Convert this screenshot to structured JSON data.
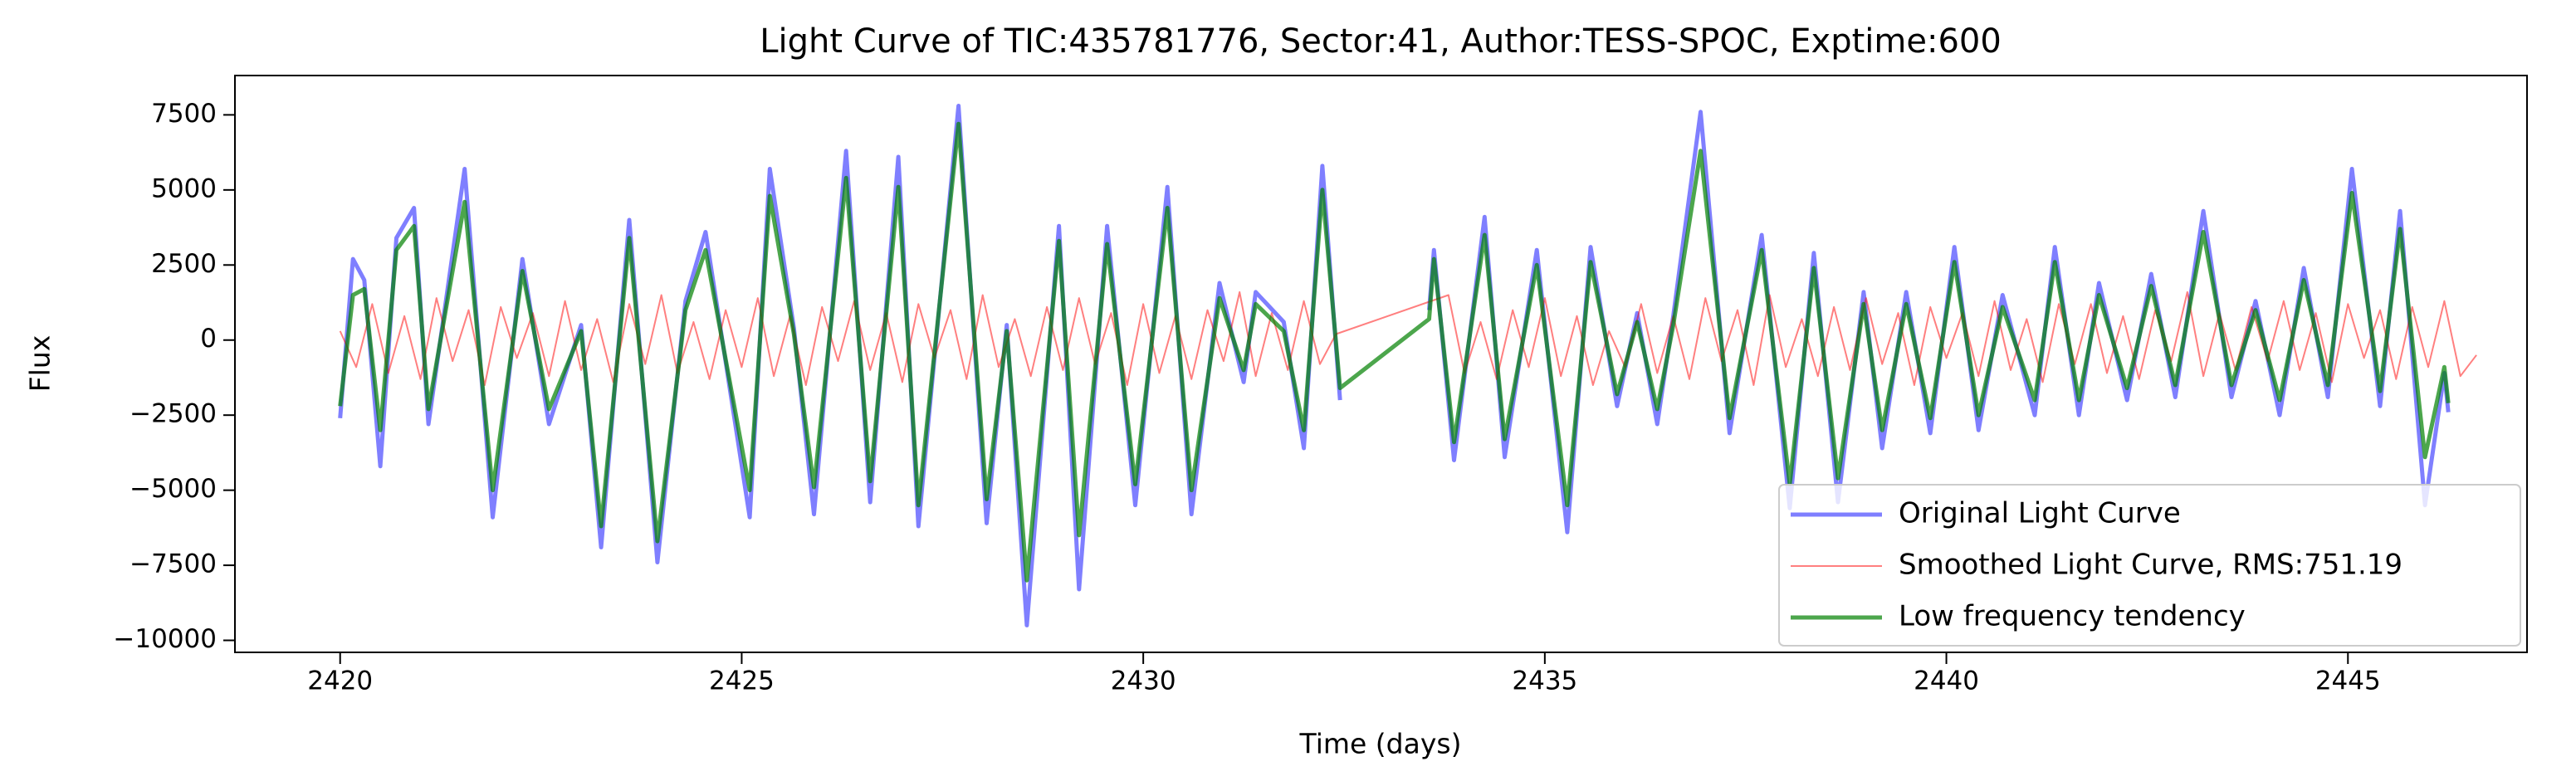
{
  "chart_data": {
    "type": "line",
    "title": "Light Curve of TIC:435781776, Sector:41, Author:TESS-SPOC, Exptime:600",
    "x_label": "Time (days)",
    "y_label": "Flux",
    "xlim": [
      2418.69,
      2447.23
    ],
    "ylim": [
      -10400,
      8810
    ],
    "xticks": [
      2420,
      2425,
      2430,
      2435,
      2440,
      2445
    ],
    "yticks": [
      {
        "value": -10000,
        "label": "−10000"
      },
      {
        "value": -7500,
        "label": "−7500"
      },
      {
        "value": -5000,
        "label": "−5000"
      },
      {
        "value": -2500,
        "label": "−2500"
      },
      0,
      2500,
      5000,
      7500
    ],
    "grid": false,
    "legend": "lower right",
    "series": [
      {
        "name": "Original Light Curve",
        "color": "#0000ff",
        "alpha": 0.5,
        "width": 5,
        "x": [
          2420.0,
          2420.16,
          2420.3,
          2420.5,
          2420.7,
          2420.92,
          2421.1,
          2421.55,
          2421.9,
          2422.27,
          2422.6,
          2423.0,
          2423.25,
          2423.6,
          2423.95,
          2424.3,
          2424.55,
          2425.1,
          2425.35,
          2425.65,
          2425.9,
          2426.3,
          2426.6,
          2426.95,
          2427.2,
          2427.7,
          2428.05,
          2428.3,
          2428.55,
          2428.95,
          2429.2,
          2429.55,
          2429.9,
          2430.3,
          2430.6,
          2430.95,
          2431.25,
          2431.4,
          2431.75,
          2432.0,
          2432.23,
          2432.45,
          2433.0,
          2433.56,
          2433.62,
          2433.87,
          2434.25,
          2434.5,
          2434.9,
          2435.28,
          2435.57,
          2435.9,
          2436.15,
          2436.4,
          2436.6,
          2436.94,
          2437.3,
          2437.7,
          2438.05,
          2438.35,
          2438.65,
          2438.97,
          2439.2,
          2439.5,
          2439.8,
          2440.1,
          2440.4,
          2440.7,
          2441.1,
          2441.35,
          2441.65,
          2441.9,
          2442.25,
          2442.55,
          2442.85,
          2443.2,
          2443.55,
          2443.85,
          2444.15,
          2444.45,
          2444.75,
          2445.05,
          2445.4,
          2445.65,
          2445.96,
          2446.2,
          2446.25
        ],
        "values": [
          -2600,
          2700,
          2000,
          -4200,
          3400,
          4400,
          -2800,
          5700,
          -5900,
          2700,
          -2800,
          500,
          -6900,
          4000,
          -7400,
          1300,
          3600,
          -5900,
          5700,
          400,
          -5800,
          6300,
          -5400,
          6100,
          -6200,
          7800,
          -6100,
          500,
          -9500,
          3800,
          -8300,
          3800,
          -5500,
          5100,
          -5800,
          1900,
          -1400,
          1600,
          600,
          -3600,
          5800,
          -2000,
          null,
          1000,
          3000,
          -4000,
          4100,
          -3900,
          3000,
          -6400,
          3100,
          -2200,
          900,
          -2800,
          800,
          7600,
          -3100,
          3500,
          -5600,
          2900,
          -5400,
          1600,
          -3600,
          1600,
          -3100,
          3100,
          -3000,
          1500,
          -2500,
          3100,
          -2500,
          1900,
          -2000,
          2200,
          -1900,
          4300,
          -1900,
          1300,
          -2500,
          2400,
          -1900,
          5700,
          -2200,
          4300,
          -5500,
          -1100,
          -2400
        ]
      },
      {
        "name": "Smoothed Light Curve, RMS:751.19",
        "color": "#ff0000",
        "alpha": 0.5,
        "width": 2,
        "x": [
          2420.0,
          2420.2,
          2420.4,
          2420.6,
          2420.8,
          2421.0,
          2421.2,
          2421.4,
          2421.6,
          2421.8,
          2422.0,
          2422.2,
          2422.4,
          2422.6,
          2422.8,
          2423.0,
          2423.2,
          2423.4,
          2423.6,
          2423.8,
          2424.0,
          2424.2,
          2424.4,
          2424.6,
          2424.8,
          2425.0,
          2425.2,
          2425.4,
          2425.6,
          2425.8,
          2426.0,
          2426.2,
          2426.4,
          2426.6,
          2426.8,
          2427.0,
          2427.2,
          2427.4,
          2427.6,
          2427.8,
          2428.0,
          2428.2,
          2428.4,
          2428.6,
          2428.8,
          2429.0,
          2429.2,
          2429.4,
          2429.6,
          2429.8,
          2430.0,
          2430.2,
          2430.4,
          2430.6,
          2430.8,
          2431.0,
          2431.2,
          2431.4,
          2431.6,
          2431.8,
          2432.0,
          2432.2,
          2432.4,
          2433.8,
          2434.0,
          2434.2,
          2434.4,
          2434.6,
          2434.8,
          2435.0,
          2435.2,
          2435.4,
          2435.6,
          2435.8,
          2436.0,
          2436.2,
          2436.4,
          2436.6,
          2436.8,
          2437.0,
          2437.2,
          2437.4,
          2437.6,
          2437.8,
          2438.0,
          2438.2,
          2438.4,
          2438.6,
          2438.8,
          2439.0,
          2439.2,
          2439.4,
          2439.6,
          2439.8,
          2440.0,
          2440.2,
          2440.4,
          2440.6,
          2440.8,
          2441.0,
          2441.2,
          2441.4,
          2441.6,
          2441.8,
          2442.0,
          2442.2,
          2442.4,
          2442.6,
          2442.8,
          2443.0,
          2443.2,
          2443.4,
          2443.6,
          2443.8,
          2444.0,
          2444.2,
          2444.4,
          2444.6,
          2444.8,
          2445.0,
          2445.2,
          2445.4,
          2445.6,
          2445.8,
          2446.0,
          2446.2,
          2446.4,
          2446.6
        ],
        "values": [
          300,
          -900,
          1200,
          -1100,
          800,
          -1300,
          1400,
          -700,
          1000,
          -1500,
          1100,
          -600,
          900,
          -1200,
          1300,
          -1000,
          700,
          -1400,
          1200,
          -800,
          1500,
          -1100,
          600,
          -1300,
          1000,
          -900,
          1400,
          -1200,
          800,
          -1500,
          1100,
          -700,
          1300,
          -1000,
          900,
          -1400,
          1200,
          -600,
          1000,
          -1300,
          1500,
          -900,
          700,
          -1200,
          1100,
          -1000,
          1400,
          -800,
          900,
          -1500,
          1200,
          -1100,
          800,
          -1300,
          1000,
          -700,
          1600,
          -1200,
          900,
          -1000,
          1300,
          -800,
          200,
          1500,
          -1100,
          600,
          -1300,
          1000,
          -900,
          1400,
          -1200,
          800,
          -1500,
          300,
          -900,
          1200,
          -1100,
          800,
          -1300,
          1400,
          -700,
          1000,
          -1500,
          1500,
          -900,
          700,
          -1200,
          1100,
          -1000,
          1400,
          -800,
          900,
          -1500,
          1100,
          -600,
          900,
          -1200,
          1300,
          -1000,
          700,
          -1400,
          1200,
          -800,
          1200,
          -1100,
          800,
          -1300,
          1000,
          -700,
          1600,
          -1200,
          900,
          -1000,
          1100,
          -700,
          1300,
          -1000,
          900,
          -1400,
          1200,
          -600,
          1000,
          -1300,
          1100,
          -900,
          1300,
          -1200,
          -500
        ]
      },
      {
        "name": "Low frequency tendency",
        "color": "#008000",
        "alpha": 0.7,
        "width": 5,
        "x": [
          2420.0,
          2420.16,
          2420.3,
          2420.5,
          2420.7,
          2420.92,
          2421.1,
          2421.55,
          2421.9,
          2422.27,
          2422.6,
          2423.0,
          2423.25,
          2423.6,
          2423.95,
          2424.3,
          2424.55,
          2425.1,
          2425.35,
          2425.65,
          2425.9,
          2426.3,
          2426.6,
          2426.95,
          2427.2,
          2427.7,
          2428.05,
          2428.3,
          2428.55,
          2428.95,
          2429.2,
          2429.55,
          2429.9,
          2430.3,
          2430.6,
          2430.95,
          2431.25,
          2431.4,
          2431.75,
          2432.0,
          2432.23,
          2432.45,
          2433.56,
          2433.62,
          2433.87,
          2434.25,
          2434.5,
          2434.9,
          2435.28,
          2435.57,
          2435.9,
          2436.15,
          2436.4,
          2436.6,
          2436.94,
          2437.3,
          2437.7,
          2438.05,
          2438.35,
          2438.65,
          2438.97,
          2439.2,
          2439.5,
          2439.8,
          2440.1,
          2440.4,
          2440.7,
          2441.1,
          2441.35,
          2441.65,
          2441.9,
          2442.25,
          2442.55,
          2442.85,
          2443.2,
          2443.55,
          2443.85,
          2444.15,
          2444.45,
          2444.75,
          2445.05,
          2445.4,
          2445.65,
          2445.96,
          2446.2,
          2446.25
        ],
        "values": [
          -2200,
          1500,
          1700,
          -3000,
          3000,
          3800,
          -2300,
          4600,
          -5000,
          2300,
          -2300,
          300,
          -6200,
          3400,
          -6700,
          1000,
          3000,
          -5000,
          4800,
          200,
          -4900,
          5400,
          -4700,
          5100,
          -5500,
          7200,
          -5300,
          300,
          -8000,
          3300,
          -6500,
          3200,
          -4800,
          4400,
          -5000,
          1400,
          -1000,
          1200,
          300,
          -3000,
          5000,
          -1600,
          700,
          2700,
          -3400,
          3500,
          -3300,
          2500,
          -5500,
          2600,
          -1800,
          600,
          -2300,
          500,
          6300,
          -2600,
          3000,
          -4800,
          2400,
          -4600,
          1200,
          -3000,
          1200,
          -2600,
          2600,
          -2500,
          1100,
          -2000,
          2600,
          -2000,
          1500,
          -1600,
          1800,
          -1500,
          3600,
          -1500,
          1000,
          -2000,
          2000,
          -1500,
          4900,
          -1700,
          3700,
          -3900,
          -900,
          -2100
        ]
      }
    ]
  }
}
